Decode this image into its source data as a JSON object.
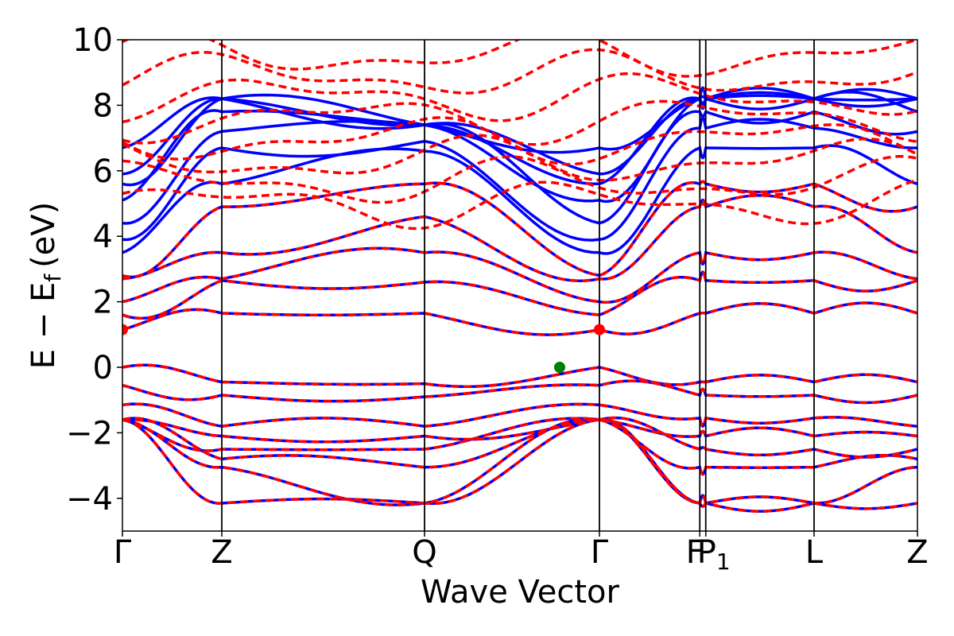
{
  "chart_data": {
    "type": "line",
    "title": "",
    "xlabel": "Wave Vector",
    "ylabel": "E − E",
    "ylabel_subscript": "f",
    "ylabel_unit": "(eV)",
    "ylim": [
      -5,
      10
    ],
    "yticks": [
      -4,
      -2,
      0,
      2,
      4,
      6,
      8,
      10
    ],
    "ytick_labels": [
      "−4",
      "−2",
      "0",
      "2",
      "4",
      "6",
      "8",
      "10"
    ],
    "xlim": [
      0,
      8.0
    ],
    "kpoints": [
      {
        "label": "Γ",
        "x": 0.0
      },
      {
        "label": "Z",
        "x": 1.0
      },
      {
        "label": "Q",
        "x": 3.04
      },
      {
        "label": "Γ",
        "x": 4.8
      },
      {
        "label": "F",
        "x": 5.81
      },
      {
        "label": "P",
        "x": 5.87,
        "sub": "1"
      },
      {
        "label": "L",
        "x": 6.96
      },
      {
        "label": "Z",
        "x": 8.0
      }
    ],
    "series": [
      {
        "name": "",
        "color": "#0000ff",
        "style": "solid"
      },
      {
        "name": "",
        "color": "#ff0000",
        "style": "dashed"
      }
    ],
    "markers": [
      {
        "kind": "CBM",
        "color": "#ff0000",
        "points": [
          [
            0.0,
            1.15
          ],
          [
            4.8,
            1.15
          ]
        ]
      },
      {
        "kind": "VBM",
        "color": "#008000",
        "points": [
          [
            4.4,
            0.0
          ]
        ]
      }
    ],
    "valence_bands_eV": {
      "Gamma": [
        0.0,
        -0.55,
        -1.15,
        -1.6
      ],
      "Z": [
        -0.45,
        -0.85,
        -1.8,
        -2.1,
        -2.5,
        -2.8,
        -3.05,
        -4.15
      ],
      "Q": [
        -0.5,
        -0.9,
        -1.8,
        -2.1,
        -2.5,
        -3.05,
        -4.15
      ],
      "L": [
        -0.45,
        -0.85,
        -1.55,
        -2.1,
        -2.5,
        -3.05,
        -4.15
      ]
    },
    "conduction_bands_eV": {
      "Gamma": [
        1.15,
        1.6,
        2.0,
        2.7,
        2.8,
        3.5,
        3.9,
        4.4,
        5.1,
        5.6,
        5.9,
        6.7
      ],
      "Z": [
        1.65,
        2.65,
        2.7,
        3.5,
        4.9,
        5.6,
        6.7,
        7.2,
        7.8,
        8.2
      ],
      "Q": [
        1.65,
        2.6,
        3.5,
        4.6,
        5.6,
        6.6,
        6.9,
        7.4
      ],
      "L": [
        1.65,
        2.65,
        3.5,
        4.9,
        5.6,
        6.7,
        7.3,
        7.8,
        8.2
      ]
    }
  }
}
